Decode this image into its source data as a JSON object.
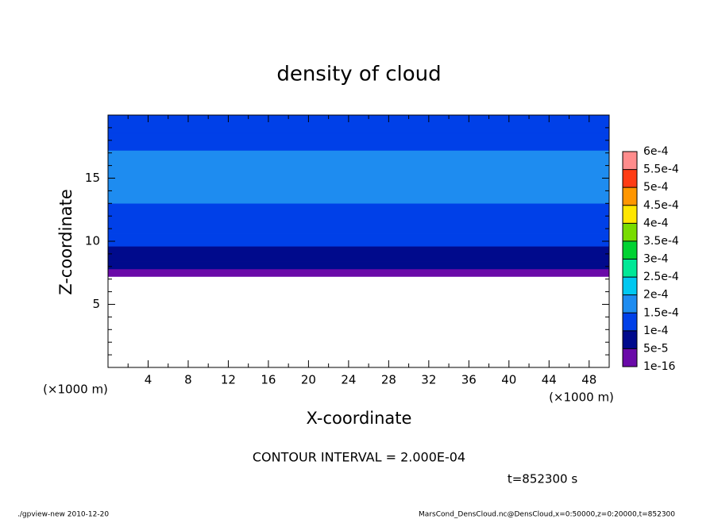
{
  "chart_data": {
    "type": "contour",
    "title": "density of cloud",
    "x_label": "X-coordinate",
    "y_label": "Z-coordinate",
    "x_unit": "(×1000 m)",
    "y_unit": "(×1000 m)",
    "xlim": [
      0,
      50
    ],
    "ylim": [
      0,
      20
    ],
    "xticks": [
      4,
      8,
      12,
      16,
      20,
      24,
      28,
      32,
      36,
      40,
      44,
      48
    ],
    "yticks": [
      5,
      10,
      15
    ],
    "xminor": [
      2,
      6,
      10,
      14,
      18,
      22,
      26,
      30,
      34,
      38,
      42,
      46
    ],
    "yminor": [
      1,
      2,
      3,
      4,
      6,
      7,
      8,
      9,
      11,
      12,
      13,
      14,
      16,
      17,
      18,
      19
    ],
    "field": {
      "z_edges": [
        7.2,
        7.8,
        8.4,
        9.6,
        10.6,
        12,
        13,
        17.2,
        18.6,
        20
      ],
      "values": [
        2e-05,
        7e-05,
        9e-05,
        0.00011,
        0.00013,
        0.00014,
        0.00016,
        0.00014,
        0.00012
      ]
    },
    "levels": [
      {
        "value": 1e-16,
        "label": "1e-16"
      },
      {
        "value": 5e-05,
        "label": "5e-5"
      },
      {
        "value": 0.0001,
        "label": "1e-4"
      },
      {
        "value": 0.00015,
        "label": "1.5e-4"
      },
      {
        "value": 0.0002,
        "label": "2e-4"
      },
      {
        "value": 0.00025,
        "label": "2.5e-4"
      },
      {
        "value": 0.0003,
        "label": "3e-4"
      },
      {
        "value": 0.00035,
        "label": "3.5e-4"
      },
      {
        "value": 0.0004,
        "label": "4e-4"
      },
      {
        "value": 0.00045,
        "label": "4.5e-4"
      },
      {
        "value": 0.0005,
        "label": "5e-4"
      },
      {
        "value": 0.00055,
        "label": "5.5e-4"
      },
      {
        "value": 0.0006,
        "label": "6e-4"
      }
    ],
    "colors": [
      "#6a0aa8",
      "#000a8c",
      "#0040e8",
      "#1e8cf0",
      "#00c8f0",
      "#00e896",
      "#00d232",
      "#78dc00",
      "#ffe600",
      "#ff9600",
      "#ff3c14",
      "#ff8c8c"
    ],
    "contour_interval": "CONTOUR INTERVAL = 2.000E-04",
    "time": "t=852300 s",
    "footer_left": "./gpview-new  2010-12-20",
    "footer_right": "MarsCond_DensCloud.nc@DensCloud,x=0:50000,z=0:20000,t=852300"
  }
}
